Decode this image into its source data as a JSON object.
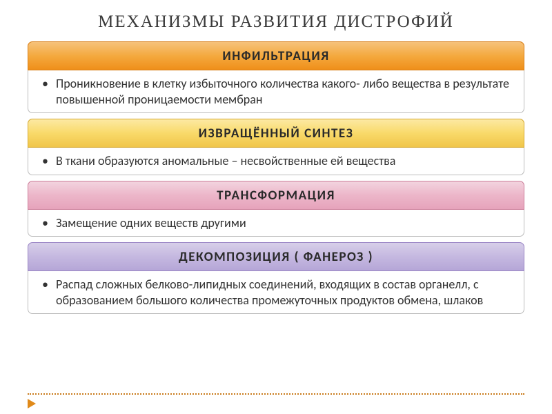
{
  "title": "МЕХАНИЗМЫ  РАЗВИТИЯ  ДИСТРОФИЙ",
  "sections": [
    {
      "header": "ИНФИЛЬТРАЦИЯ",
      "desc": "Проникновение в клетку избыточного количества какого- либо вещества в результате повышенной проницаемости мембран",
      "colorClass": "hb-orange"
    },
    {
      "header": "ИЗВРАЩЁННЫЙ СИНТЕЗ",
      "desc": "В ткани образуются аномальные – несвойственные ей вещества",
      "colorClass": "hb-yellow"
    },
    {
      "header": "ТРАНСФОРМАЦИЯ",
      "desc": "Замещение одних веществ другими",
      "colorClass": "hb-pink"
    },
    {
      "header": "ДЕКОМПОЗИЦИЯ  ( ФАНЕРОЗ )",
      "desc": "Распад сложных белково-липидных соединений, входящих в состав органелл, с образованием большого количества промежуточных продуктов обмена, шлаков",
      "colorClass": "hb-purple"
    }
  ],
  "style": {
    "title_fontsize": 25,
    "header_fontsize": 19,
    "desc_fontsize": 18,
    "colors": {
      "orange_grad": [
        "#f6c27a",
        "#f4a93e",
        "#ef8f1a"
      ],
      "yellow_grad": [
        "#fce9a3",
        "#f9da6a",
        "#f0c64a"
      ],
      "pink_grad": [
        "#f3d4df",
        "#ecb6c9",
        "#e6a3bb"
      ],
      "purple_grad": [
        "#d7cfe9",
        "#c5b8e0",
        "#b5a6d7"
      ],
      "footer_dotted": "#c97a1a",
      "arrow_marker": "#e08a1a",
      "background": "#ffffff"
    }
  }
}
